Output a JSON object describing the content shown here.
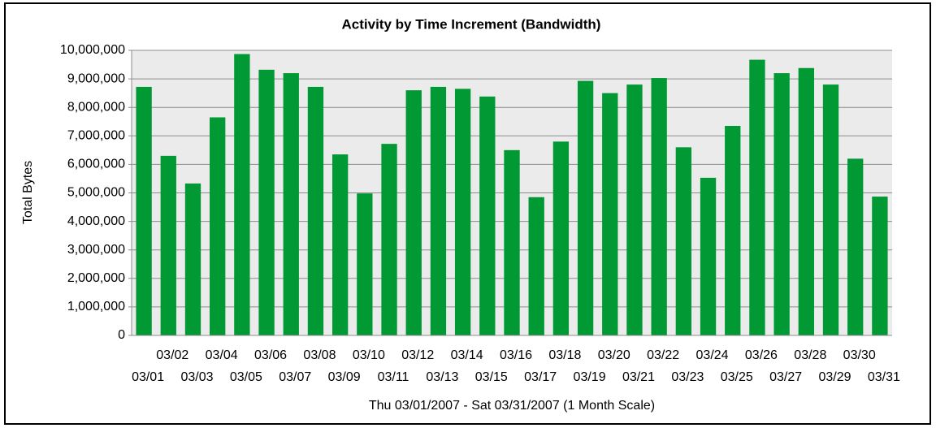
{
  "chart_data": {
    "type": "bar",
    "title": "Activity by Time Increment (Bandwidth)",
    "y_label": "Total Bytes",
    "x_label": "Thu 03/01/2007 - Sat 03/31/2007 (1 Month Scale)",
    "categories": [
      "03/01",
      "03/02",
      "03/03",
      "03/04",
      "03/05",
      "03/06",
      "03/07",
      "03/08",
      "03/09",
      "03/10",
      "03/11",
      "03/12",
      "03/13",
      "03/14",
      "03/15",
      "03/16",
      "03/17",
      "03/18",
      "03/19",
      "03/20",
      "03/21",
      "03/22",
      "03/23",
      "03/24",
      "03/25",
      "03/26",
      "03/27",
      "03/28",
      "03/29",
      "03/30",
      "03/31"
    ],
    "values": [
      8720000,
      6300000,
      5330000,
      7650000,
      9870000,
      9320000,
      9200000,
      8720000,
      6350000,
      4980000,
      6720000,
      8600000,
      8720000,
      8650000,
      8380000,
      6500000,
      4850000,
      6800000,
      8930000,
      8500000,
      8800000,
      9030000,
      6600000,
      5530000,
      7350000,
      9670000,
      9200000,
      9380000,
      8800000,
      6200000,
      4870000
    ],
    "color": "#009933",
    "ylim": [
      0,
      10000000
    ],
    "yticks": [
      0,
      {
        "value": 1000000,
        "label": "1,000,000"
      },
      {
        "value": 2000000,
        "label": "2,000,000"
      },
      {
        "value": 3000000,
        "label": "3,000,000"
      },
      {
        "value": 4000000,
        "label": "4,000,000"
      },
      {
        "value": 5000000,
        "label": "5,000,000"
      },
      {
        "value": 6000000,
        "label": "6,000,000"
      },
      {
        "value": 7000000,
        "label": "7,000,000"
      },
      {
        "value": 8000000,
        "label": "8,000,000"
      },
      {
        "value": 9000000,
        "label": "9,000,000"
      },
      {
        "value": 10000000,
        "label": "10,000,000"
      }
    ],
    "grid": true
  }
}
